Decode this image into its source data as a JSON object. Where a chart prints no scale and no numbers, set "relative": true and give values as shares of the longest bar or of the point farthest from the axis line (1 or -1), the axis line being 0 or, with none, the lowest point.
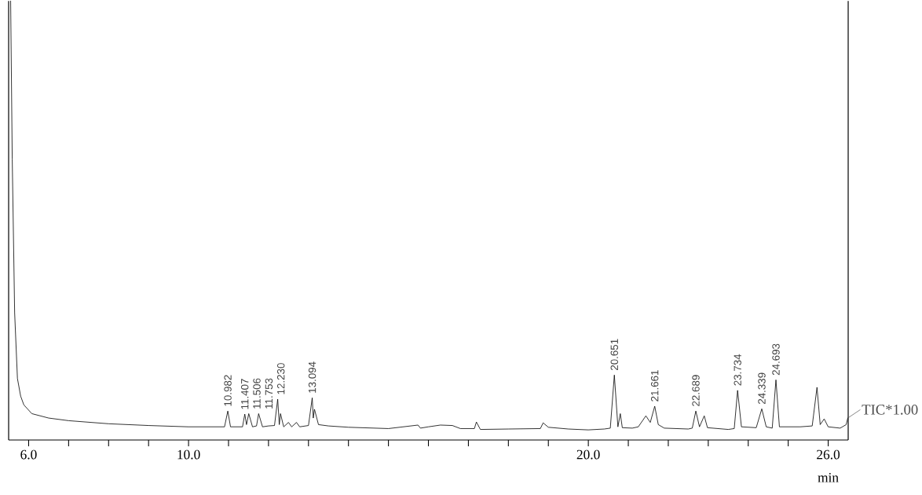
{
  "chart_data": {
    "type": "line",
    "relative": true,
    "xlabel": "min",
    "xlim": [
      5.5,
      26.5
    ],
    "xticks": [
      {
        "value": 6,
        "label": "6.0"
      },
      {
        "value": 7,
        "label": null
      },
      {
        "value": 8,
        "label": null
      },
      {
        "value": 9,
        "label": null
      },
      {
        "value": 10,
        "label": "10.0"
      },
      {
        "value": 11,
        "label": null
      },
      {
        "value": 12,
        "label": null
      },
      {
        "value": 13,
        "label": null
      },
      {
        "value": 14,
        "label": null
      },
      {
        "value": 15,
        "label": null
      },
      {
        "value": 16,
        "label": null
      },
      {
        "value": 17,
        "label": null
      },
      {
        "value": 18,
        "label": null
      },
      {
        "value": 19,
        "label": null
      },
      {
        "value": 20,
        "label": "20.0"
      },
      {
        "value": 21,
        "label": null
      },
      {
        "value": 22,
        "label": null
      },
      {
        "value": 23,
        "label": null
      },
      {
        "value": 24,
        "label": null
      },
      {
        "value": 25,
        "label": null
      },
      {
        "value": 26,
        "label": "26.0"
      }
    ],
    "series": [
      {
        "color": "#000000",
        "x": [
          5.55,
          5.59,
          5.65,
          5.72,
          5.8,
          5.88,
          6.08,
          6.5,
          7.0,
          8.0,
          9.0,
          10.0,
          10.9,
          10.982,
          11.05,
          11.35,
          11.407,
          11.45,
          11.506,
          11.6,
          11.7,
          11.753,
          11.85,
          12.0,
          12.15,
          12.23,
          12.27,
          12.3,
          12.38,
          12.5,
          12.58,
          12.7,
          12.78,
          13.0,
          13.094,
          13.12,
          13.15,
          13.25,
          13.5,
          14.0,
          15.0,
          15.74,
          15.8,
          16.0,
          16.3,
          16.6,
          16.8,
          17.15,
          17.2,
          17.3,
          18.0,
          18.8,
          18.87,
          19.0,
          19.5,
          20.0,
          20.4,
          20.55,
          20.651,
          20.74,
          20.8,
          20.85,
          21.1,
          21.25,
          21.44,
          21.55,
          21.661,
          21.75,
          21.9,
          22.5,
          22.6,
          22.689,
          22.78,
          22.9,
          22.98,
          23.5,
          23.65,
          23.734,
          23.83,
          24.2,
          24.339,
          24.45,
          24.6,
          24.693,
          24.78,
          25.3,
          25.6,
          25.72,
          25.8,
          25.9,
          26.0,
          26.3,
          26.45,
          26.49
        ],
        "values": [
          1.0,
          0.64,
          0.29,
          0.14,
          0.1,
          0.08,
          0.06,
          0.05,
          0.044,
          0.037,
          0.033,
          0.03,
          0.03,
          0.066,
          0.03,
          0.03,
          0.059,
          0.035,
          0.06,
          0.03,
          0.032,
          0.06,
          0.03,
          0.032,
          0.033,
          0.093,
          0.035,
          0.06,
          0.03,
          0.04,
          0.03,
          0.04,
          0.03,
          0.033,
          0.096,
          0.05,
          0.07,
          0.035,
          0.032,
          0.029,
          0.026,
          0.034,
          0.027,
          0.03,
          0.034,
          0.033,
          0.026,
          0.026,
          0.041,
          0.024,
          0.025,
          0.026,
          0.039,
          0.029,
          0.025,
          0.023,
          0.025,
          0.027,
          0.148,
          0.03,
          0.06,
          0.028,
          0.027,
          0.03,
          0.055,
          0.04,
          0.077,
          0.035,
          0.027,
          0.025,
          0.027,
          0.066,
          0.03,
          0.055,
          0.028,
          0.024,
          0.026,
          0.113,
          0.03,
          0.028,
          0.071,
          0.03,
          0.027,
          0.137,
          0.03,
          0.03,
          0.032,
          0.12,
          0.035,
          0.048,
          0.03,
          0.027,
          0.035,
          0.05
        ]
      }
    ],
    "annotations": [
      {
        "text": "10.982",
        "x": 10.982,
        "y": 0.066
      },
      {
        "text": "11.407",
        "x": 11.407,
        "y": 0.059
      },
      {
        "text": "11.506",
        "x": 11.506,
        "y": 0.06
      },
      {
        "text": "11.753",
        "x": 11.753,
        "y": 0.06
      },
      {
        "text": "12.230",
        "x": 12.23,
        "y": 0.093
      },
      {
        "text": "13.094",
        "x": 13.094,
        "y": 0.096
      },
      {
        "text": "20.651",
        "x": 20.651,
        "y": 0.148
      },
      {
        "text": "21.661",
        "x": 21.661,
        "y": 0.077
      },
      {
        "text": "22.689",
        "x": 22.689,
        "y": 0.066
      },
      {
        "text": "23.734",
        "x": 23.734,
        "y": 0.113
      },
      {
        "text": "24.339",
        "x": 24.339,
        "y": 0.071
      },
      {
        "text": "24.693",
        "x": 24.693,
        "y": 0.137
      },
      {
        "text": "TIC*1.00",
        "x": 26.49,
        "y": 0.05
      }
    ]
  }
}
